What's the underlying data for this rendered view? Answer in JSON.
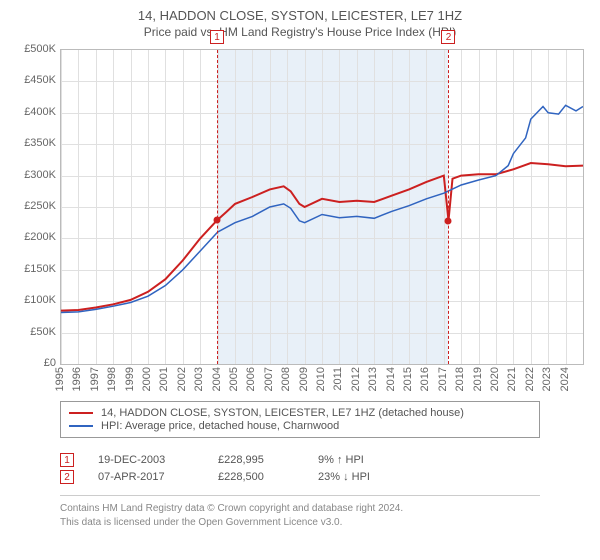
{
  "title": "14, HADDON CLOSE, SYSTON, LEICESTER, LE7 1HZ",
  "subtitle": "Price paid vs. HM Land Registry's House Price Index (HPI)",
  "chart": {
    "type": "line",
    "x_start": 1995,
    "x_end": 2025,
    "y_min": 0,
    "y_max": 500000,
    "y_tick_step": 50000,
    "y_tick_labels": [
      "£0",
      "£50K",
      "£100K",
      "£150K",
      "£200K",
      "£250K",
      "£300K",
      "£350K",
      "£400K",
      "£450K",
      "£500K"
    ],
    "x_ticks": [
      1995,
      1996,
      1997,
      1998,
      1999,
      2000,
      2001,
      2002,
      2003,
      2004,
      2005,
      2006,
      2007,
      2008,
      2009,
      2010,
      2011,
      2012,
      2013,
      2014,
      2015,
      2016,
      2017,
      2018,
      2019,
      2020,
      2021,
      2022,
      2023,
      2024
    ],
    "grid_color": "#e0e0e0",
    "background_color": "#ffffff",
    "shaded_band": {
      "from": 2003.97,
      "to": 2017.27,
      "color": "#e8f0f8"
    },
    "series": [
      {
        "name": "property",
        "label": "14, HADDON CLOSE, SYSTON, LEICESTER, LE7 1HZ (detached house)",
        "color": "#cc2020",
        "width": 2,
        "points": [
          [
            1995,
            85000
          ],
          [
            1996,
            86000
          ],
          [
            1997,
            90000
          ],
          [
            1998,
            95000
          ],
          [
            1999,
            102000
          ],
          [
            2000,
            115000
          ],
          [
            2001,
            135000
          ],
          [
            2002,
            165000
          ],
          [
            2003,
            200000
          ],
          [
            2003.97,
            228995
          ],
          [
            2004.5,
            242000
          ],
          [
            2005,
            255000
          ],
          [
            2006,
            266000
          ],
          [
            2007,
            278000
          ],
          [
            2007.8,
            283000
          ],
          [
            2008.2,
            275000
          ],
          [
            2008.7,
            255000
          ],
          [
            2009,
            250000
          ],
          [
            2010,
            263000
          ],
          [
            2011,
            258000
          ],
          [
            2012,
            260000
          ],
          [
            2013,
            258000
          ],
          [
            2014,
            268000
          ],
          [
            2015,
            278000
          ],
          [
            2016,
            290000
          ],
          [
            2017,
            300000
          ],
          [
            2017.27,
            228500
          ],
          [
            2017.5,
            295000
          ],
          [
            2018,
            300000
          ],
          [
            2019,
            302000
          ],
          [
            2020,
            302000
          ],
          [
            2021,
            310000
          ],
          [
            2022,
            320000
          ],
          [
            2023,
            318000
          ],
          [
            2024,
            315000
          ],
          [
            2025,
            316000
          ]
        ]
      },
      {
        "name": "hpi",
        "label": "HPI: Average price, detached house, Charnwood",
        "color": "#3064c0",
        "width": 1.5,
        "points": [
          [
            1995,
            82000
          ],
          [
            1996,
            83000
          ],
          [
            1997,
            87000
          ],
          [
            1998,
            92000
          ],
          [
            1999,
            98000
          ],
          [
            2000,
            108000
          ],
          [
            2001,
            125000
          ],
          [
            2002,
            150000
          ],
          [
            2003,
            180000
          ],
          [
            2004,
            210000
          ],
          [
            2005,
            225000
          ],
          [
            2006,
            235000
          ],
          [
            2007,
            250000
          ],
          [
            2007.8,
            255000
          ],
          [
            2008.2,
            248000
          ],
          [
            2008.7,
            228000
          ],
          [
            2009,
            225000
          ],
          [
            2010,
            238000
          ],
          [
            2011,
            233000
          ],
          [
            2012,
            235000
          ],
          [
            2013,
            232000
          ],
          [
            2014,
            243000
          ],
          [
            2015,
            252000
          ],
          [
            2016,
            263000
          ],
          [
            2017,
            272000
          ],
          [
            2018,
            285000
          ],
          [
            2019,
            293000
          ],
          [
            2020,
            300000
          ],
          [
            2020.7,
            316000
          ],
          [
            2021,
            335000
          ],
          [
            2021.7,
            360000
          ],
          [
            2022,
            390000
          ],
          [
            2022.7,
            410000
          ],
          [
            2023,
            400000
          ],
          [
            2023.6,
            398000
          ],
          [
            2024,
            412000
          ],
          [
            2024.6,
            403000
          ],
          [
            2025,
            410000
          ]
        ]
      }
    ],
    "markers": [
      {
        "n": "1",
        "x": 2003.97,
        "y": 228995,
        "color": "#cc2020"
      },
      {
        "n": "2",
        "x": 2017.27,
        "y": 228500,
        "color": "#cc2020"
      }
    ]
  },
  "events": [
    {
      "n": "1",
      "date": "19-DEC-2003",
      "price": "£228,995",
      "delta": "9% ↑ HPI",
      "color": "#cc2020"
    },
    {
      "n": "2",
      "date": "07-APR-2017",
      "price": "£228,500",
      "delta": "23% ↓ HPI",
      "color": "#cc2020"
    }
  ],
  "attribution": {
    "line1": "Contains HM Land Registry data © Crown copyright and database right 2024.",
    "line2": "This data is licensed under the Open Government Licence v3.0."
  }
}
